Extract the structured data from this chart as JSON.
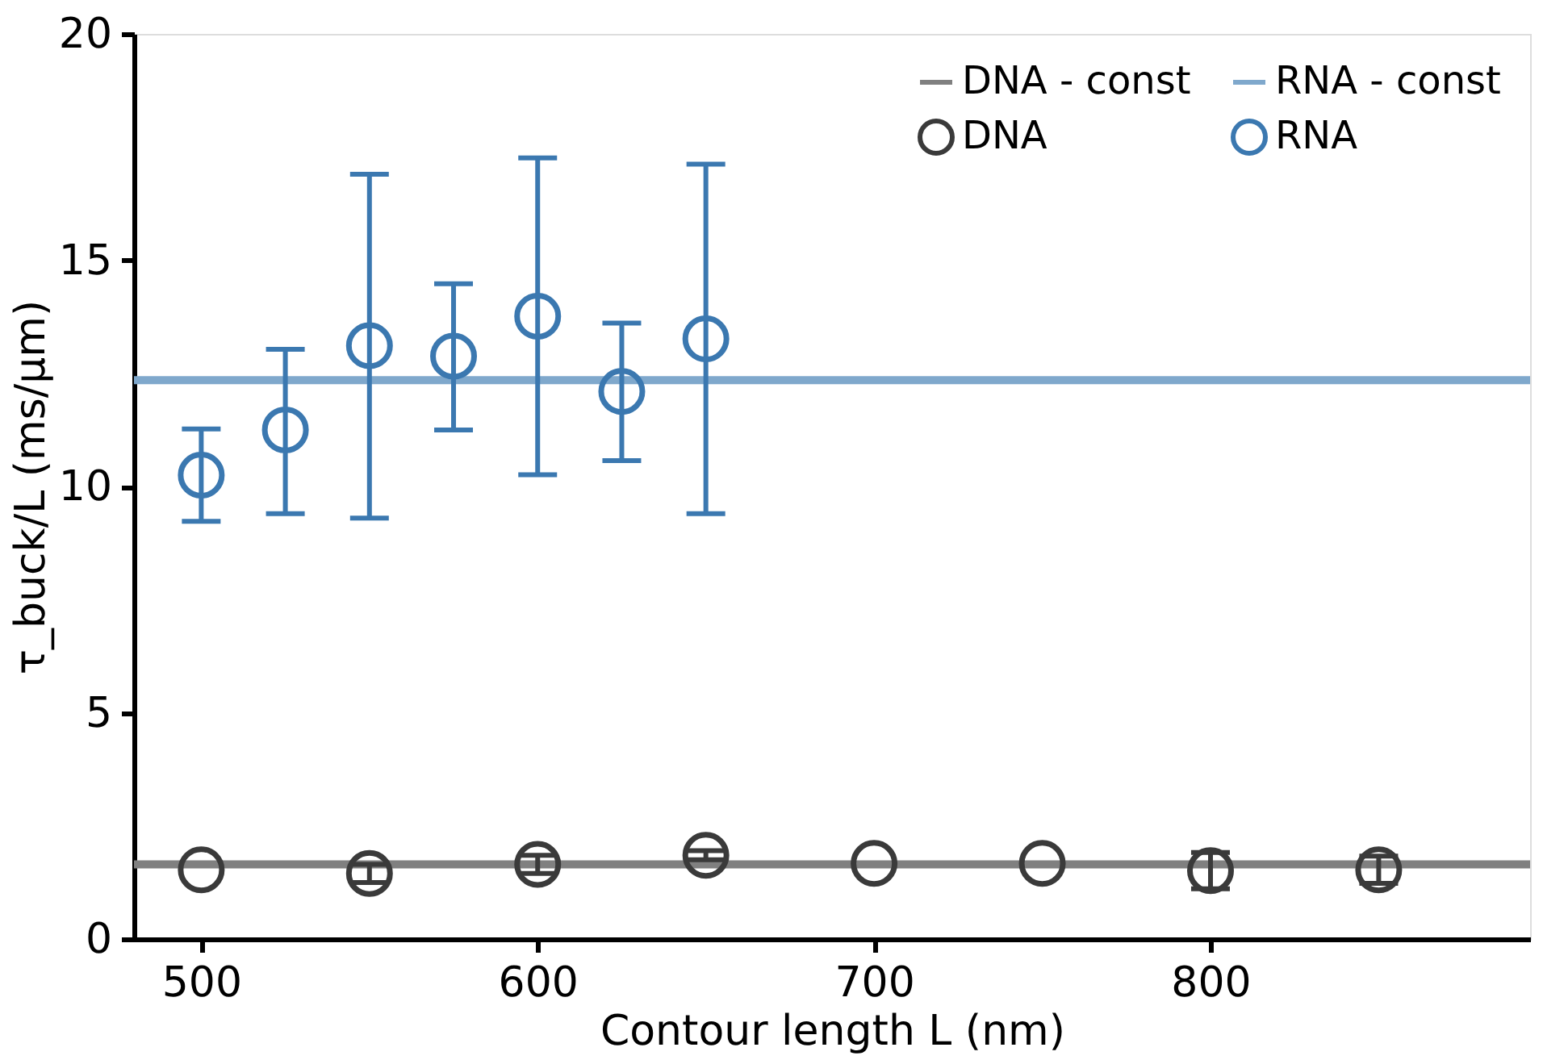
{
  "chart_data": {
    "type": "scatter",
    "xlabel": "Contour length L (nm)",
    "ylabel": "τ_buck/L (ms/μm)",
    "xlim": [
      480,
      895
    ],
    "xticks": [
      500,
      600,
      700,
      800
    ],
    "ylim": [
      0,
      20
    ],
    "yticks": [
      0,
      5,
      10,
      15,
      20
    ],
    "grid": false,
    "legend": "top right",
    "marker": "circle",
    "series": [
      {
        "name": "DNA - const",
        "type": "line",
        "color": "#808080",
        "x": [
          480,
          895
        ],
        "values": [
          1.65,
          1.65
        ],
        "marker": "none"
      },
      {
        "name": "DNA",
        "type": "scatter",
        "color": "#3a3a3a",
        "x": [
          500,
          550,
          600,
          650,
          700,
          750,
          800,
          850
        ],
        "values": [
          1.53,
          1.45,
          1.65,
          1.85,
          1.67,
          1.67,
          1.51,
          1.53
        ],
        "errors": [
          null,
          0.2,
          0.2,
          0.1,
          null,
          null,
          0.4,
          0.3
        ]
      },
      {
        "name": "RNA - const",
        "type": "line",
        "color": "#7fa8cc",
        "x": [
          480,
          895
        ],
        "values": [
          12.35,
          12.35
        ],
        "marker": "none"
      },
      {
        "name": "RNA",
        "type": "scatter",
        "color": "#3b78b0",
        "x": [
          500,
          525,
          550,
          575,
          600,
          625,
          650
        ],
        "values": [
          10.25,
          11.25,
          13.11,
          12.88,
          13.76,
          12.1,
          13.26
        ],
        "errors": [
          [
            9.23,
            11.27
          ],
          [
            9.4,
            13.03
          ],
          [
            9.3,
            16.9
          ],
          [
            11.25,
            14.48
          ],
          [
            10.26,
            17.26
          ],
          [
            10.57,
            13.61
          ],
          [
            9.4,
            17.12
          ]
        ]
      }
    ]
  }
}
